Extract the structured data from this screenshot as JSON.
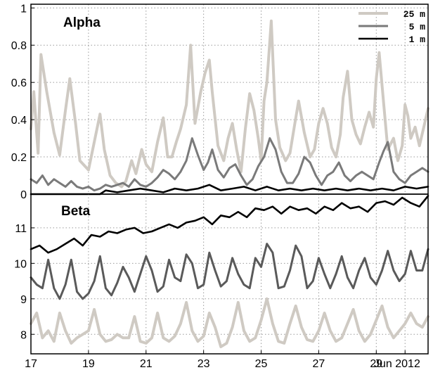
{
  "chart_data": [
    {
      "type": "line",
      "title": "Alpha",
      "ylim": [
        0,
        1.02
      ],
      "xlim": [
        17,
        30.8
      ],
      "yticks": [
        0,
        0.2,
        0.4,
        0.6,
        0.8,
        1
      ],
      "ytick_labels": [
        "0",
        "0.2",
        "0.4",
        "0.6",
        "0.8",
        "1"
      ],
      "grid": true,
      "legend_position": "top-right",
      "series": [
        {
          "name": "25 m",
          "color": "#cfcac3",
          "x": [
            17.0,
            17.1,
            17.25,
            17.35,
            17.55,
            17.8,
            18.0,
            18.2,
            18.35,
            18.55,
            18.7,
            19.0,
            19.2,
            19.4,
            19.55,
            19.75,
            19.95,
            20.15,
            20.3,
            20.5,
            20.65,
            20.85,
            21.0,
            21.2,
            21.4,
            21.6,
            21.75,
            21.9,
            22.05,
            22.2,
            22.4,
            22.55,
            22.7,
            22.9,
            23.05,
            23.2,
            23.3,
            23.5,
            23.7,
            23.85,
            24.0,
            24.15,
            24.3,
            24.45,
            24.6,
            24.75,
            24.9,
            25.0,
            25.1,
            25.2,
            25.35,
            25.5,
            25.65,
            25.85,
            26.0,
            26.15,
            26.3,
            26.5,
            26.7,
            26.85,
            27.0,
            27.15,
            27.3,
            27.45,
            27.6,
            27.75,
            27.85,
            28.0,
            28.15,
            28.3,
            28.45,
            28.6,
            28.75,
            28.9,
            29.0,
            29.1,
            29.25,
            29.4,
            29.6,
            29.75,
            29.9,
            30.0,
            30.1,
            30.2,
            30.35,
            30.5,
            30.65,
            30.8
          ],
          "y": [
            0.35,
            0.55,
            0.22,
            0.75,
            0.55,
            0.33,
            0.21,
            0.45,
            0.62,
            0.38,
            0.18,
            0.13,
            0.28,
            0.43,
            0.24,
            0.1,
            0.06,
            0.04,
            0.07,
            0.18,
            0.11,
            0.24,
            0.16,
            0.12,
            0.28,
            0.41,
            0.2,
            0.2,
            0.28,
            0.35,
            0.48,
            0.8,
            0.38,
            0.55,
            0.65,
            0.72,
            0.55,
            0.26,
            0.18,
            0.3,
            0.38,
            0.24,
            0.12,
            0.35,
            0.54,
            0.45,
            0.3,
            0.18,
            0.5,
            0.6,
            0.93,
            0.4,
            0.25,
            0.18,
            0.22,
            0.36,
            0.5,
            0.33,
            0.2,
            0.24,
            0.38,
            0.46,
            0.38,
            0.25,
            0.2,
            0.32,
            0.52,
            0.66,
            0.4,
            0.32,
            0.27,
            0.36,
            0.44,
            0.36,
            0.62,
            0.76,
            0.5,
            0.24,
            0.3,
            0.18,
            0.26,
            0.48,
            0.42,
            0.3,
            0.36,
            0.26,
            0.36,
            0.46
          ]
        },
        {
          "name": "5 m",
          "color": "#7a7a7a",
          "x": [
            17.0,
            17.2,
            17.4,
            17.6,
            17.8,
            18.0,
            18.2,
            18.4,
            18.6,
            18.8,
            19.0,
            19.2,
            19.4,
            19.6,
            19.8,
            20.0,
            20.2,
            20.4,
            20.6,
            20.8,
            21.0,
            21.2,
            21.4,
            21.6,
            21.8,
            22.0,
            22.2,
            22.4,
            22.6,
            22.8,
            23.0,
            23.15,
            23.3,
            23.5,
            23.7,
            23.9,
            24.1,
            24.3,
            24.5,
            24.7,
            24.9,
            25.1,
            25.3,
            25.5,
            25.7,
            25.9,
            26.1,
            26.3,
            26.5,
            26.7,
            26.9,
            27.1,
            27.3,
            27.5,
            27.7,
            27.9,
            28.1,
            28.3,
            28.5,
            28.7,
            28.9,
            29.1,
            29.25,
            29.4,
            29.6,
            29.8,
            30.0,
            30.2,
            30.4,
            30.6,
            30.8
          ],
          "y": [
            0.08,
            0.06,
            0.1,
            0.05,
            0.08,
            0.06,
            0.04,
            0.07,
            0.04,
            0.03,
            0.04,
            0.02,
            0.03,
            0.05,
            0.04,
            0.05,
            0.06,
            0.04,
            0.08,
            0.05,
            0.04,
            0.06,
            0.09,
            0.13,
            0.11,
            0.08,
            0.12,
            0.18,
            0.3,
            0.21,
            0.13,
            0.17,
            0.24,
            0.13,
            0.09,
            0.14,
            0.16,
            0.1,
            0.05,
            0.08,
            0.15,
            0.2,
            0.3,
            0.24,
            0.12,
            0.06,
            0.06,
            0.11,
            0.2,
            0.17,
            0.1,
            0.05,
            0.1,
            0.12,
            0.17,
            0.1,
            0.07,
            0.1,
            0.12,
            0.1,
            0.08,
            0.17,
            0.23,
            0.28,
            0.12,
            0.08,
            0.06,
            0.1,
            0.12,
            0.14,
            0.12
          ]
        },
        {
          "name": "1 m",
          "color": "#000000",
          "x": [
            17.0,
            17.5,
            18.0,
            18.5,
            19.0,
            19.4,
            19.6,
            20.0,
            20.4,
            20.8,
            21.2,
            21.6,
            22.0,
            22.4,
            22.8,
            23.2,
            23.6,
            24.0,
            24.4,
            24.8,
            25.2,
            25.6,
            26.0,
            26.4,
            26.8,
            27.2,
            27.6,
            28.0,
            28.4,
            28.8,
            29.2,
            29.6,
            30.0,
            30.4,
            30.8
          ],
          "y": [
            0.0,
            0.0,
            0.0,
            0.0,
            0.0,
            0.0,
            0.02,
            0.01,
            0.02,
            0.03,
            0.02,
            0.01,
            0.03,
            0.02,
            0.03,
            0.05,
            0.02,
            0.03,
            0.04,
            0.02,
            0.04,
            0.02,
            0.03,
            0.02,
            0.03,
            0.02,
            0.03,
            0.02,
            0.03,
            0.02,
            0.03,
            0.02,
            0.04,
            0.03,
            0.04
          ]
        }
      ]
    },
    {
      "type": "line",
      "title": "Beta",
      "ylim": [
        7.45,
        11.95
      ],
      "xlim": [
        17,
        30.8
      ],
      "yticks": [
        8,
        9,
        10,
        11
      ],
      "ytick_labels": [
        "8",
        "9",
        "10",
        "11"
      ],
      "xticks": [
        17,
        19,
        21,
        23,
        25,
        27,
        29,
        30.0
      ],
      "xtick_labels": [
        "17",
        "19",
        "21",
        "23",
        "25",
        "27",
        "29",
        "Jun 2012"
      ],
      "grid": true,
      "series": [
        {
          "name": "1 m",
          "color": "#000000",
          "x": [
            17.0,
            17.3,
            17.6,
            17.9,
            18.2,
            18.5,
            18.8,
            19.1,
            19.4,
            19.7,
            20.0,
            20.3,
            20.6,
            20.9,
            21.2,
            21.5,
            21.8,
            22.1,
            22.4,
            22.7,
            23.0,
            23.3,
            23.6,
            23.9,
            24.2,
            24.5,
            24.8,
            25.1,
            25.4,
            25.7,
            26.0,
            26.3,
            26.6,
            26.9,
            27.2,
            27.5,
            27.8,
            28.1,
            28.4,
            28.7,
            29.0,
            29.3,
            29.6,
            29.9,
            30.2,
            30.5,
            30.8
          ],
          "y": [
            10.4,
            10.5,
            10.3,
            10.4,
            10.55,
            10.7,
            10.5,
            10.8,
            10.75,
            10.9,
            10.85,
            10.95,
            11.0,
            10.85,
            10.9,
            11.0,
            11.1,
            11.0,
            11.15,
            11.2,
            11.3,
            11.1,
            11.35,
            11.3,
            11.45,
            11.3,
            11.55,
            11.5,
            11.6,
            11.4,
            11.6,
            11.5,
            11.55,
            11.4,
            11.6,
            11.5,
            11.7,
            11.55,
            11.6,
            11.45,
            11.7,
            11.75,
            11.65,
            11.85,
            11.7,
            11.6,
            11.9
          ]
        },
        {
          "name": "5 m",
          "color": "#5a5a5a",
          "x": [
            17.0,
            17.2,
            17.4,
            17.6,
            17.8,
            18.0,
            18.2,
            18.4,
            18.6,
            18.8,
            19.0,
            19.2,
            19.4,
            19.6,
            19.8,
            20.0,
            20.2,
            20.4,
            20.6,
            20.8,
            21.0,
            21.2,
            21.4,
            21.6,
            21.8,
            22.0,
            22.2,
            22.4,
            22.6,
            22.8,
            23.0,
            23.2,
            23.4,
            23.6,
            23.8,
            24.0,
            24.2,
            24.4,
            24.6,
            24.8,
            25.0,
            25.2,
            25.4,
            25.6,
            25.8,
            26.0,
            26.2,
            26.4,
            26.6,
            26.8,
            27.0,
            27.2,
            27.4,
            27.6,
            27.8,
            28.0,
            28.2,
            28.4,
            28.6,
            28.8,
            29.0,
            29.2,
            29.4,
            29.6,
            29.8,
            30.0,
            30.2,
            30.4,
            30.6,
            30.8
          ],
          "y": [
            9.6,
            9.4,
            9.3,
            10.1,
            9.3,
            9.0,
            9.4,
            10.1,
            9.2,
            9.0,
            9.15,
            9.5,
            10.2,
            9.3,
            9.1,
            9.45,
            9.9,
            9.6,
            9.2,
            9.7,
            10.2,
            9.8,
            9.2,
            9.35,
            10.1,
            9.6,
            9.5,
            10.25,
            10.0,
            9.3,
            9.4,
            10.3,
            9.8,
            9.35,
            9.5,
            10.15,
            9.7,
            9.4,
            9.3,
            10.15,
            9.9,
            10.55,
            10.3,
            9.3,
            9.35,
            9.8,
            10.5,
            10.2,
            9.3,
            9.5,
            10.15,
            9.7,
            9.3,
            9.7,
            10.2,
            9.6,
            9.3,
            9.8,
            10.15,
            9.6,
            9.4,
            9.8,
            10.35,
            9.8,
            9.5,
            9.7,
            10.35,
            9.8,
            9.8,
            10.4
          ]
        },
        {
          "name": "25 m",
          "color": "#cfcac3",
          "x": [
            17.0,
            17.2,
            17.4,
            17.6,
            17.8,
            18.0,
            18.2,
            18.4,
            18.6,
            18.8,
            19.0,
            19.2,
            19.4,
            19.6,
            19.8,
            20.0,
            20.2,
            20.4,
            20.6,
            20.8,
            21.0,
            21.2,
            21.4,
            21.6,
            21.8,
            22.0,
            22.2,
            22.4,
            22.6,
            22.8,
            23.0,
            23.2,
            23.4,
            23.6,
            23.8,
            24.0,
            24.2,
            24.4,
            24.6,
            24.8,
            25.0,
            25.2,
            25.4,
            25.6,
            25.8,
            26.0,
            26.2,
            26.4,
            26.6,
            26.8,
            27.0,
            27.2,
            27.4,
            27.6,
            27.8,
            28.0,
            28.2,
            28.4,
            28.6,
            28.8,
            29.0,
            29.2,
            29.4,
            29.6,
            29.8,
            30.0,
            30.2,
            30.4,
            30.6,
            30.8
          ],
          "y": [
            8.3,
            8.6,
            7.9,
            8.1,
            7.8,
            8.6,
            8.1,
            7.75,
            7.9,
            8.0,
            8.1,
            8.7,
            8.0,
            7.8,
            7.85,
            8.0,
            7.9,
            7.9,
            8.5,
            7.8,
            7.75,
            7.9,
            8.6,
            7.9,
            7.8,
            7.95,
            8.3,
            8.9,
            8.1,
            7.8,
            7.95,
            8.6,
            8.2,
            7.65,
            7.75,
            8.2,
            8.9,
            8.1,
            7.8,
            7.9,
            8.4,
            9.0,
            8.3,
            7.8,
            7.75,
            8.3,
            8.8,
            8.2,
            7.85,
            7.8,
            8.1,
            8.6,
            8.1,
            7.8,
            7.9,
            8.3,
            8.7,
            8.1,
            7.8,
            8.0,
            8.4,
            8.8,
            8.2,
            7.9,
            8.1,
            8.3,
            8.6,
            8.3,
            8.2,
            8.5
          ]
        }
      ]
    }
  ]
}
